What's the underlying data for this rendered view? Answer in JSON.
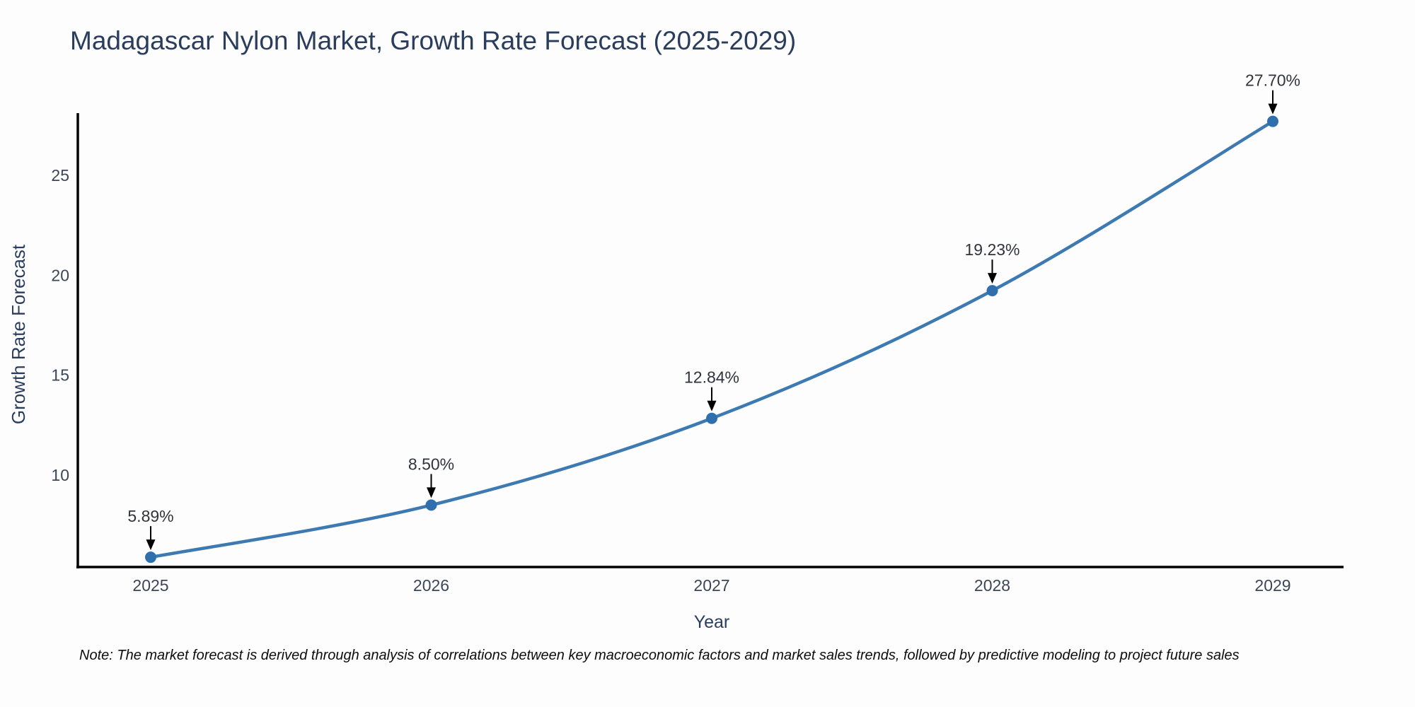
{
  "page": {
    "background_color": "#fdfdfd"
  },
  "note": "Note: The market forecast is derived through analysis of correlations between key macroeconomic factors and market sales trends, followed by predictive modeling to project future sales",
  "chart_data": {
    "type": "line",
    "title": "Madagascar Nylon Market, Growth Rate Forecast (2025-2029)",
    "xlabel": "Year",
    "ylabel": "Growth Rate Forecast",
    "x": [
      2025,
      2026,
      2027,
      2028,
      2029
    ],
    "values": [
      5.89,
      8.5,
      12.84,
      19.23,
      27.7
    ],
    "point_labels": [
      "5.89%",
      "8.50%",
      "12.84%",
      "19.23%",
      "27.70%"
    ],
    "series_name": "Growth Rate Forecast (%)",
    "xticks": [
      "2025",
      "2026",
      "2027",
      "2028",
      "2029"
    ],
    "yticks": [
      10,
      15,
      20,
      25
    ],
    "ylim": [
      5.4,
      28.3
    ],
    "grid": false,
    "legend": "none",
    "annotations_have_arrows": true,
    "colors": {
      "line": "#3e7ab2",
      "marker": "#2f6fae",
      "spine": "#000000",
      "arrow": "#000000",
      "tick_label": "#3c4657",
      "data_label": "#2f343c",
      "title": "#2b3d5c"
    }
  }
}
